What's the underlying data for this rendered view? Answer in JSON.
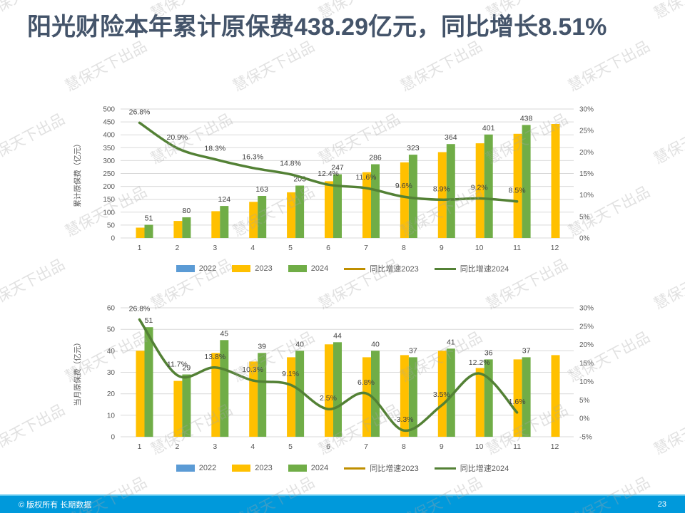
{
  "slide": {
    "title": "阳光财险本年累计原保费438.29亿元，同比增长8.51%",
    "watermark_text": "慧保天下出品",
    "footer": {
      "copyright": "© 版权所有 长期数据",
      "page_number": "23"
    }
  },
  "colors": {
    "title": "#44546A",
    "footer_bg": "#0099DB",
    "bar_2022": "#5B9BD5",
    "bar_2023": "#FFC000",
    "bar_2024": "#70AD47",
    "line_growth_2023": "#BF8F00",
    "line_growth_2024": "#538135",
    "grid": "#D9D9D9",
    "tick_text": "#595959",
    "data_label": "#3F3F3F"
  },
  "legend": {
    "items": [
      {
        "key": "2022",
        "label": "2022",
        "swatch": "bar",
        "color_key": "bar_2022"
      },
      {
        "key": "2023",
        "label": "2023",
        "swatch": "bar",
        "color_key": "bar_2023"
      },
      {
        "key": "2024",
        "label": "2024",
        "swatch": "bar",
        "color_key": "bar_2024"
      },
      {
        "key": "growth-2023",
        "label": "同比增速2023",
        "swatch": "line",
        "color_key": "line_growth_2023"
      },
      {
        "key": "growth-2024",
        "label": "同比增速2024",
        "swatch": "line",
        "color_key": "line_growth_2024"
      }
    ]
  },
  "chart_data": [
    {
      "id": "cumulative",
      "type": "bar+line",
      "title": "",
      "ylabel": "累计原保费（亿元）",
      "categories": [
        "1",
        "2",
        "3",
        "4",
        "5",
        "6",
        "7",
        "8",
        "9",
        "10",
        "11",
        "12"
      ],
      "axis_left": {
        "min": 0,
        "max": 500,
        "step": 50
      },
      "axis_right": {
        "min": 0,
        "max": 30,
        "step": 5,
        "suffix": "%"
      },
      "grid": "horizontal-left-axis",
      "legend_position": "bottom",
      "series": [
        {
          "name": "2022",
          "kind": "bar",
          "color_key": "bar_2022",
          "values": [],
          "show_labels": false
        },
        {
          "name": "2023",
          "kind": "bar",
          "color_key": "bar_2023",
          "values": [
            40,
            66,
            104,
            140,
            177,
            220,
            255,
            293,
            333,
            367,
            404,
            442
          ],
          "show_labels": false
        },
        {
          "name": "2024",
          "kind": "bar",
          "color_key": "bar_2024",
          "values": [
            51,
            80,
            124,
            163,
            203,
            247,
            286,
            323,
            364,
            401,
            438,
            null
          ],
          "show_labels": true
        },
        {
          "name": "同比增速2023",
          "kind": "line",
          "color_key": "line_growth_2023",
          "values": [],
          "show_labels": false
        },
        {
          "name": "同比增速2024",
          "kind": "line",
          "color_key": "line_growth_2024",
          "values": [
            26.8,
            20.9,
            18.3,
            16.3,
            14.8,
            12.4,
            11.6,
            9.6,
            8.9,
            9.2,
            8.5,
            null
          ],
          "show_labels": true,
          "label_suffix": "%"
        }
      ]
    },
    {
      "id": "monthly",
      "type": "bar+line",
      "title": "",
      "ylabel": "当月原保费（亿元）",
      "categories": [
        "1",
        "2",
        "3",
        "4",
        "5",
        "6",
        "7",
        "8",
        "9",
        "10",
        "11",
        "12"
      ],
      "axis_left": {
        "min": 0,
        "max": 60,
        "step": 10
      },
      "axis_right": {
        "min": -5,
        "max": 30,
        "step": 5,
        "suffix": "%"
      },
      "grid": "horizontal-left-axis",
      "legend_position": "bottom",
      "series": [
        {
          "name": "2022",
          "kind": "bar",
          "color_key": "bar_2022",
          "values": [],
          "show_labels": false
        },
        {
          "name": "2023",
          "kind": "bar",
          "color_key": "bar_2023",
          "values": [
            40,
            26,
            39,
            35,
            37,
            43,
            37,
            38,
            40,
            32,
            36,
            38
          ],
          "show_labels": false
        },
        {
          "name": "2024",
          "kind": "bar",
          "color_key": "bar_2024",
          "values": [
            51,
            29,
            45,
            39,
            40,
            44,
            40,
            37,
            41,
            36,
            37,
            null
          ],
          "show_labels": true
        },
        {
          "name": "同比增速2023",
          "kind": "line",
          "color_key": "line_growth_2023",
          "values": [],
          "show_labels": false
        },
        {
          "name": "同比增速2024",
          "kind": "line",
          "color_key": "line_growth_2024",
          "values": [
            26.8,
            11.7,
            13.8,
            10.3,
            9.1,
            2.5,
            6.8,
            -3.3,
            3.5,
            12.2,
            1.6,
            null
          ],
          "show_labels": true,
          "label_suffix": "%"
        }
      ]
    }
  ]
}
